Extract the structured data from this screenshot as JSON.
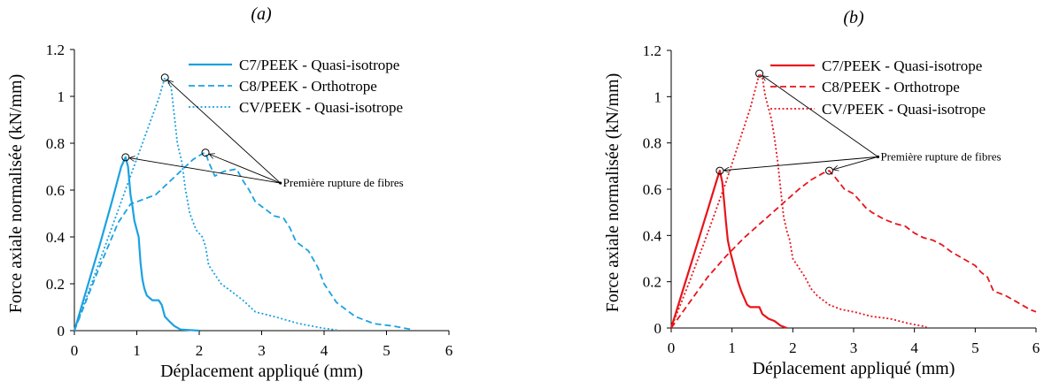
{
  "chart_data": [
    {
      "type": "line",
      "panel_label": "(a)",
      "xlabel": "Déplacement appliqué (mm)",
      "ylabel": "Force axiale normalisée (kN/mm)",
      "xlim": [
        0,
        6
      ],
      "ylim": [
        0,
        1.2
      ],
      "xticks": [
        "0",
        "1",
        "2",
        "3",
        "4",
        "5",
        "6"
      ],
      "yticks": [
        "0",
        "0.2",
        "0.4",
        "0.6",
        "0.8",
        "1",
        "1.2"
      ],
      "grid": false,
      "legend_position": "top-right",
      "annotation": {
        "text": "Première rupture de fibres",
        "anchor": [
          3.3,
          0.63
        ],
        "targets": [
          [
            0.82,
            0.74
          ],
          [
            1.45,
            1.08
          ],
          [
            2.1,
            0.76
          ]
        ]
      },
      "series": [
        {
          "name": "C7/PEEK - Quasi-isotrope",
          "style": "solid",
          "color": "#1ba1e2",
          "points": [
            [
              0,
              0
            ],
            [
              0.2,
              0.18
            ],
            [
              0.4,
              0.36
            ],
            [
              0.6,
              0.55
            ],
            [
              0.75,
              0.7
            ],
            [
              0.82,
              0.74
            ],
            [
              0.86,
              0.7
            ],
            [
              0.9,
              0.58
            ],
            [
              0.93,
              0.53
            ],
            [
              0.96,
              0.47
            ],
            [
              1.0,
              0.43
            ],
            [
              1.03,
              0.4
            ],
            [
              1.06,
              0.29
            ],
            [
              1.09,
              0.22
            ],
            [
              1.12,
              0.18
            ],
            [
              1.16,
              0.15
            ],
            [
              1.25,
              0.13
            ],
            [
              1.35,
              0.13
            ],
            [
              1.4,
              0.11
            ],
            [
              1.45,
              0.06
            ],
            [
              1.52,
              0.04
            ],
            [
              1.6,
              0.02
            ],
            [
              1.7,
              0.005
            ],
            [
              2.0,
              0
            ]
          ]
        },
        {
          "name": "C8/PEEK - Orthotrope",
          "style": "dashed",
          "color": "#1ba1e2",
          "points": [
            [
              0,
              0
            ],
            [
              0.4,
              0.27
            ],
            [
              0.7,
              0.46
            ],
            [
              0.9,
              0.54
            ],
            [
              1.1,
              0.56
            ],
            [
              1.3,
              0.58
            ],
            [
              1.5,
              0.63
            ],
            [
              1.7,
              0.68
            ],
            [
              1.9,
              0.73
            ],
            [
              2.05,
              0.755
            ],
            [
              2.1,
              0.76
            ],
            [
              2.15,
              0.72
            ],
            [
              2.25,
              0.66
            ],
            [
              2.4,
              0.68
            ],
            [
              2.6,
              0.69
            ],
            [
              2.7,
              0.64
            ],
            [
              2.8,
              0.6
            ],
            [
              2.9,
              0.55
            ],
            [
              3.0,
              0.53
            ],
            [
              3.1,
              0.51
            ],
            [
              3.2,
              0.49
            ],
            [
              3.35,
              0.48
            ],
            [
              3.45,
              0.44
            ],
            [
              3.55,
              0.38
            ],
            [
              3.75,
              0.34
            ],
            [
              3.9,
              0.27
            ],
            [
              4.0,
              0.2
            ],
            [
              4.2,
              0.12
            ],
            [
              4.5,
              0.06
            ],
            [
              4.8,
              0.03
            ],
            [
              5.1,
              0.02
            ],
            [
              5.4,
              0.005
            ]
          ]
        },
        {
          "name": "CV/PEEK - Quasi-isotrope",
          "style": "dotted",
          "color": "#1ba1e2",
          "points": [
            [
              0,
              0
            ],
            [
              0.3,
              0.22
            ],
            [
              0.6,
              0.44
            ],
            [
              0.9,
              0.66
            ],
            [
              1.2,
              0.88
            ],
            [
              1.35,
              0.99
            ],
            [
              1.45,
              1.08
            ],
            [
              1.55,
              1.04
            ],
            [
              1.6,
              0.92
            ],
            [
              1.65,
              0.8
            ],
            [
              1.72,
              0.72
            ],
            [
              1.78,
              0.6
            ],
            [
              1.85,
              0.5
            ],
            [
              1.95,
              0.43
            ],
            [
              2.05,
              0.4
            ],
            [
              2.1,
              0.36
            ],
            [
              2.15,
              0.28
            ],
            [
              2.25,
              0.24
            ],
            [
              2.35,
              0.2
            ],
            [
              2.5,
              0.17
            ],
            [
              2.7,
              0.13
            ],
            [
              2.9,
              0.08
            ],
            [
              3.2,
              0.06
            ],
            [
              3.6,
              0.03
            ],
            [
              4.0,
              0.01
            ],
            [
              4.2,
              0.003
            ]
          ]
        }
      ]
    },
    {
      "type": "line",
      "panel_label": "(b)",
      "xlabel": "Déplacement appliqué (mm)",
      "ylabel": "Force axiale normalisée (kN/mm)",
      "xlim": [
        0,
        6
      ],
      "ylim": [
        0,
        1.2
      ],
      "xticks": [
        "0",
        "1",
        "2",
        "3",
        "4",
        "5",
        "6"
      ],
      "yticks": [
        "0",
        "0.2",
        "0.4",
        "0.6",
        "0.8",
        "1",
        "1.2"
      ],
      "grid": false,
      "legend_position": "top-right",
      "annotation": {
        "text": "Première rupture de fibres",
        "anchor": [
          3.4,
          0.74
        ],
        "targets": [
          [
            0.8,
            0.68
          ],
          [
            1.45,
            1.1
          ],
          [
            2.6,
            0.68
          ]
        ]
      },
      "series": [
        {
          "name": "C7/PEEK - Quasi-isotrope",
          "style": "solid",
          "color": "#e8141b",
          "points": [
            [
              0,
              0
            ],
            [
              0.2,
              0.17
            ],
            [
              0.4,
              0.34
            ],
            [
              0.6,
              0.51
            ],
            [
              0.75,
              0.64
            ],
            [
              0.8,
              0.68
            ],
            [
              0.84,
              0.63
            ],
            [
              0.87,
              0.55
            ],
            [
              0.9,
              0.46
            ],
            [
              0.93,
              0.38
            ],
            [
              0.97,
              0.33
            ],
            [
              1.0,
              0.3
            ],
            [
              1.05,
              0.25
            ],
            [
              1.1,
              0.2
            ],
            [
              1.15,
              0.16
            ],
            [
              1.2,
              0.13
            ],
            [
              1.25,
              0.1
            ],
            [
              1.3,
              0.09
            ],
            [
              1.45,
              0.09
            ],
            [
              1.5,
              0.06
            ],
            [
              1.6,
              0.04
            ],
            [
              1.7,
              0.03
            ],
            [
              1.8,
              0.01
            ],
            [
              1.9,
              0
            ]
          ]
        },
        {
          "name": "C8/PEEK - Orthotrope",
          "style": "dashed",
          "color": "#e8141b",
          "points": [
            [
              0,
              0
            ],
            [
              0.3,
              0.11
            ],
            [
              0.6,
              0.22
            ],
            [
              0.9,
              0.31
            ],
            [
              1.2,
              0.39
            ],
            [
              1.5,
              0.46
            ],
            [
              1.8,
              0.53
            ],
            [
              2.1,
              0.6
            ],
            [
              2.3,
              0.64
            ],
            [
              2.5,
              0.67
            ],
            [
              2.6,
              0.68
            ],
            [
              2.7,
              0.65
            ],
            [
              2.85,
              0.6
            ],
            [
              3.0,
              0.58
            ],
            [
              3.1,
              0.55
            ],
            [
              3.2,
              0.52
            ],
            [
              3.3,
              0.5
            ],
            [
              3.5,
              0.47
            ],
            [
              3.7,
              0.45
            ],
            [
              3.85,
              0.44
            ],
            [
              4.0,
              0.41
            ],
            [
              4.15,
              0.39
            ],
            [
              4.3,
              0.38
            ],
            [
              4.45,
              0.36
            ],
            [
              4.6,
              0.33
            ],
            [
              4.8,
              0.3
            ],
            [
              5.0,
              0.27
            ],
            [
              5.1,
              0.24
            ],
            [
              5.2,
              0.22
            ],
            [
              5.3,
              0.16
            ],
            [
              5.5,
              0.14
            ],
            [
              5.7,
              0.11
            ],
            [
              5.9,
              0.08
            ],
            [
              6.0,
              0.07
            ]
          ]
        },
        {
          "name": "CV/PEEK - Quasi-isotrope",
          "style": "dotted",
          "color": "#e8141b",
          "points": [
            [
              0,
              0
            ],
            [
              0.3,
              0.2
            ],
            [
              0.6,
              0.41
            ],
            [
              0.9,
              0.63
            ],
            [
              1.1,
              0.79
            ],
            [
              1.3,
              0.95
            ],
            [
              1.45,
              1.1
            ],
            [
              1.5,
              1.08
            ],
            [
              1.55,
              1.0
            ],
            [
              1.6,
              0.95
            ],
            [
              1.65,
              0.9
            ],
            [
              1.7,
              0.82
            ],
            [
              1.75,
              0.72
            ],
            [
              1.8,
              0.6
            ],
            [
              1.85,
              0.48
            ],
            [
              1.9,
              0.42
            ],
            [
              1.95,
              0.38
            ],
            [
              2.0,
              0.3
            ],
            [
              2.1,
              0.26
            ],
            [
              2.2,
              0.22
            ],
            [
              2.3,
              0.17
            ],
            [
              2.4,
              0.14
            ],
            [
              2.6,
              0.1
            ],
            [
              2.8,
              0.08
            ],
            [
              3.0,
              0.07
            ],
            [
              3.3,
              0.05
            ],
            [
              3.6,
              0.04
            ],
            [
              3.9,
              0.02
            ],
            [
              4.2,
              0.005
            ]
          ]
        }
      ]
    }
  ]
}
